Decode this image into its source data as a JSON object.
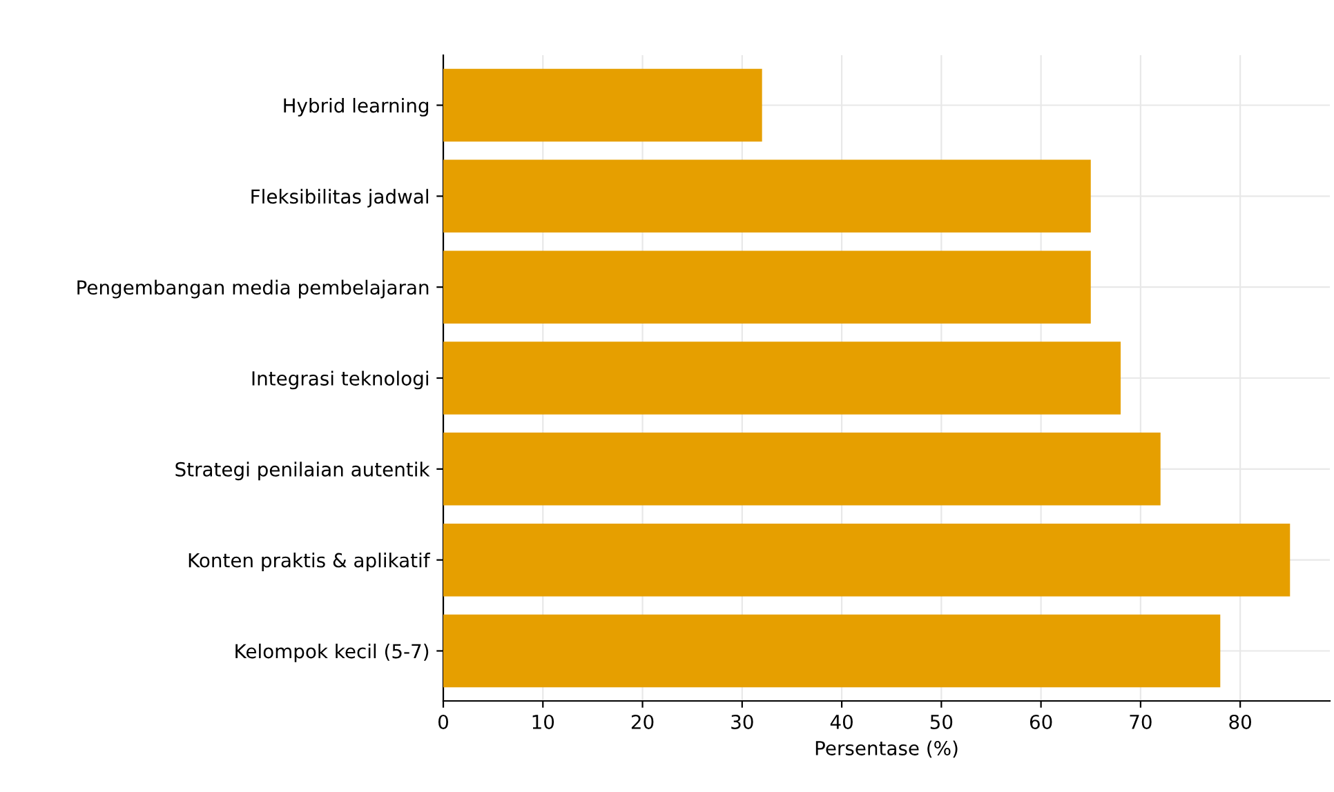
{
  "chart_data": {
    "type": "bar",
    "orientation": "horizontal",
    "xlabel": "Persentase (%)",
    "categories": [
      "Hybrid learning",
      "Fleksibilitas jadwal",
      "Pengembangan media pembelajaran",
      "Integrasi teknologi",
      "Strategi penilaian autentik",
      "Konten praktis & aplikatif",
      "Kelompok kecil (5-7)"
    ],
    "values": [
      32,
      65,
      65,
      68,
      72,
      85,
      78
    ],
    "color": "#e69f00",
    "xlim": [
      0,
      89
    ],
    "xticks": [
      0,
      10,
      20,
      30,
      40,
      50,
      60,
      70,
      80
    ],
    "grid": true
  }
}
